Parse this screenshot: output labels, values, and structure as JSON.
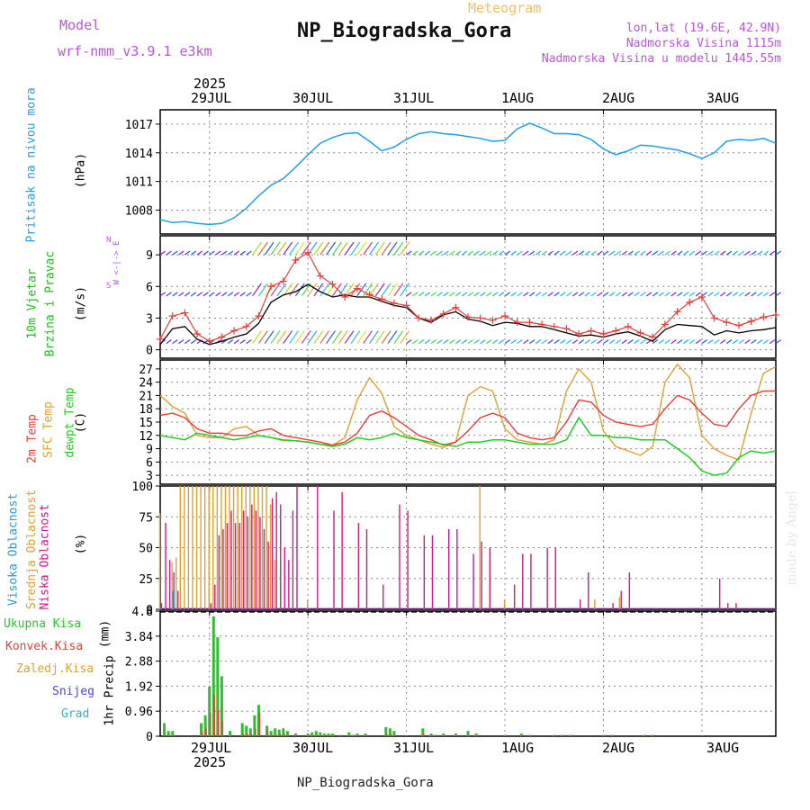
{
  "header": {
    "model_label": "Model",
    "model_name": "wrf-nmm_v3.9.1 e3km",
    "meteogram_label": "Meteogram",
    "station_title": "NP_Biogradska_Gora",
    "lonlat": "lon,lat (19.6E, 42.9N)",
    "elevation": "Nadmorska Visina 1115m",
    "model_elevation": "Nadmorska Visina u modelu 1445.55m",
    "watermark": "made by Angel",
    "footer_station": "NP_Biogradska_Gora"
  },
  "colors": {
    "pressure": "#1e9ee6",
    "wind_label": "#22bb22",
    "wind_speed": "#000000",
    "wind_gust": "#e83c3c",
    "temp_2m": "#e83c3c",
    "temp_sfc": "#e0a030",
    "dewpoint": "#22cc22",
    "cloud_high": "#2299dd",
    "cloud_mid": "#e0a030",
    "cloud_low": "#cc1a8a",
    "precip_total": "#33bb33",
    "precip_conv": "#e83c3c",
    "precip_snow": "#4444ee",
    "precip_grad": "#22bbbb",
    "axes_purple": "#bb55dd"
  },
  "time_axis": {
    "year_top": "2025",
    "year_bottom": "2025",
    "days": [
      "29JUL",
      "30JUL",
      "31JUL",
      "1AUG",
      "2AUG",
      "3AUG"
    ]
  },
  "chart_data": [
    {
      "type": "line",
      "id": "pressure",
      "ylabel_main": "Pritisak na nivou mora",
      "ylabel_unit": "(hPa)",
      "yticks": [
        "1008",
        "1011",
        "1014",
        "1017"
      ],
      "ylim": [
        1005.5,
        1018.5
      ],
      "x_hours": [
        0,
        3,
        6,
        9,
        12,
        15,
        18,
        21,
        24,
        27,
        30,
        33,
        36,
        39,
        42,
        45,
        48,
        51,
        54,
        57,
        60,
        63,
        66,
        69,
        72,
        75,
        78,
        81,
        84,
        87,
        90,
        93,
        96,
        99,
        102,
        105,
        108,
        111,
        114,
        117,
        120,
        123,
        126,
        129,
        132,
        135,
        138,
        141,
        144,
        147,
        150
      ],
      "values": [
        1007.0,
        1006.7,
        1006.8,
        1006.6,
        1006.5,
        1006.6,
        1007.2,
        1008.2,
        1009.5,
        1010.6,
        1011.3,
        1012.5,
        1013.8,
        1015.0,
        1015.6,
        1016.0,
        1016.1,
        1015.2,
        1014.2,
        1014.6,
        1015.4,
        1016.0,
        1016.2,
        1016.0,
        1015.9,
        1015.7,
        1015.5,
        1015.2,
        1015.3,
        1016.5,
        1017.1,
        1016.6,
        1016.0,
        1016.0,
        1015.9,
        1015.4,
        1014.4,
        1013.8,
        1014.2,
        1014.8,
        1014.7,
        1014.5,
        1014.3,
        1013.9,
        1013.4,
        1014.0,
        1015.2,
        1015.4,
        1015.3,
        1015.5,
        1015.0
      ]
    },
    {
      "type": "line",
      "id": "wind",
      "ylabel_main": "10m Vjetar",
      "ylabel_sub": "Brzina i Pravac",
      "ylabel_unit": "(m/s)",
      "compass_label": "W <-|-> E",
      "compass_n": "N",
      "compass_s": "S",
      "yticks": [
        "0",
        "3",
        "6",
        "9"
      ],
      "ylim": [
        -0.8,
        10.8
      ],
      "x_hours": [
        0,
        3,
        6,
        9,
        12,
        15,
        18,
        21,
        24,
        27,
        30,
        33,
        36,
        39,
        42,
        45,
        48,
        51,
        54,
        57,
        60,
        63,
        66,
        69,
        72,
        75,
        78,
        81,
        84,
        87,
        90,
        93,
        96,
        99,
        102,
        105,
        108,
        111,
        114,
        117,
        120,
        123,
        126,
        129,
        132,
        135,
        138,
        141,
        144,
        147,
        150
      ],
      "series": [
        {
          "name": "speed",
          "values": [
            0.5,
            2.0,
            2.2,
            1.0,
            0.5,
            0.8,
            1.2,
            1.5,
            2.5,
            4.5,
            5.2,
            5.5,
            6.2,
            5.5,
            5.0,
            5.2,
            5.0,
            5.0,
            4.6,
            4.2,
            4.0,
            3.0,
            2.6,
            3.3,
            3.6,
            2.9,
            2.7,
            2.3,
            2.6,
            2.5,
            2.2,
            2.2,
            1.9,
            1.6,
            1.3,
            1.4,
            1.2,
            1.5,
            1.7,
            1.3,
            0.8,
            1.9,
            2.4,
            2.3,
            2.2,
            1.4,
            1.8,
            1.6,
            1.8,
            1.9,
            2.1
          ]
        },
        {
          "name": "gust",
          "values": [
            1.0,
            3.2,
            3.5,
            1.5,
            0.8,
            1.2,
            1.8,
            2.2,
            3.2,
            6.0,
            6.5,
            8.5,
            9.2,
            7.0,
            6.2,
            5.0,
            5.8,
            5.2,
            4.8,
            4.4,
            4.2,
            3.0,
            2.8,
            3.4,
            4.0,
            3.1,
            3.0,
            2.8,
            3.2,
            2.6,
            2.6,
            2.4,
            2.2,
            2.0,
            1.5,
            1.8,
            1.5,
            1.8,
            2.2,
            1.6,
            1.2,
            2.4,
            3.6,
            4.5,
            5.0,
            3.0,
            2.6,
            2.3,
            2.7,
            3.1,
            3.3
          ]
        },
        {
          "name": "barbs",
          "rows": [
            0,
            1,
            2
          ]
        }
      ]
    },
    {
      "type": "line",
      "id": "temperature",
      "ylabel_main": "2m Temp",
      "ylabel_sub": "SFC Temp",
      "ylabel_sub2": "dewpt Temp",
      "ylabel_unit": "(C)",
      "yticks": [
        "3",
        "6",
        "9",
        "12",
        "15",
        "18",
        "21",
        "24",
        "27"
      ],
      "ylim": [
        1.0,
        29.0
      ],
      "x_hours": [
        0,
        3,
        6,
        9,
        12,
        15,
        18,
        21,
        24,
        27,
        30,
        33,
        36,
        39,
        42,
        45,
        48,
        51,
        54,
        57,
        60,
        63,
        66,
        69,
        72,
        75,
        78,
        81,
        84,
        87,
        90,
        93,
        96,
        99,
        102,
        105,
        108,
        111,
        114,
        117,
        120,
        123,
        126,
        129,
        132,
        135,
        138,
        141,
        144,
        147,
        150
      ],
      "series": [
        {
          "name": "2m Temp",
          "values": [
            16.5,
            17,
            16,
            13.5,
            12.5,
            12.5,
            12,
            12,
            13,
            13.5,
            12,
            11.5,
            11,
            10.5,
            9.8,
            10.5,
            12.5,
            16.5,
            17.5,
            16,
            14,
            12,
            11,
            9.8,
            10.5,
            13,
            16,
            17,
            16,
            12.5,
            11.5,
            11,
            11.5,
            15,
            20,
            19.5,
            16.5,
            15,
            14.5,
            14,
            14.5,
            18,
            21,
            20,
            17,
            14.5,
            14,
            18,
            21,
            22,
            22
          ]
        },
        {
          "name": "SFC Temp",
          "values": [
            21,
            18.5,
            17,
            12,
            11.5,
            11.5,
            13.5,
            14,
            12,
            11.5,
            10.8,
            10.8,
            10.5,
            10,
            9.8,
            11.5,
            20,
            25,
            21.5,
            14,
            12,
            11,
            10,
            9.3,
            10.5,
            21,
            23,
            22,
            13.5,
            11,
            10.5,
            10,
            11,
            22,
            27,
            24,
            13,
            9.5,
            8.5,
            7.5,
            9.5,
            24,
            28,
            25,
            12,
            9,
            7.5,
            6.5,
            17,
            26,
            27.5
          ]
        },
        {
          "name": "dewpt Temp",
          "values": [
            12,
            11.5,
            11,
            12.5,
            12,
            11.5,
            11,
            11.5,
            12,
            11.5,
            11,
            10.8,
            10.5,
            10,
            9.5,
            10,
            11.5,
            11,
            11.5,
            12.5,
            11.5,
            11,
            10.5,
            10,
            9.5,
            10.5,
            10.5,
            11,
            11,
            10.5,
            10,
            10,
            10,
            11,
            16,
            12,
            12,
            11.5,
            11.5,
            11,
            11,
            11,
            9,
            7,
            4,
            3,
            3.5,
            7,
            8.5,
            8,
            8.5
          ]
        }
      ]
    },
    {
      "type": "bar",
      "id": "cloud",
      "ylabel_main": "Visoka Oblacnost",
      "ylabel_sub": "Srednja Oblacnost",
      "ylabel_sub2": "Niska Oblacnost",
      "ylabel_unit": "(%)",
      "yticks": [
        "0",
        "25",
        "50",
        "75",
        "100"
      ],
      "ylim": [
        0,
        100
      ],
      "x_hours": [
        0,
        1,
        2,
        3,
        4,
        5,
        6,
        7,
        8,
        9,
        10,
        11,
        12,
        13,
        14,
        15,
        16,
        17,
        18,
        19,
        20,
        21,
        22,
        23,
        24,
        25,
        26,
        27,
        28,
        29,
        30,
        31,
        32,
        33,
        34,
        36,
        38,
        40,
        42,
        44,
        46,
        48,
        50,
        52,
        54,
        56,
        58,
        60,
        62,
        64,
        66,
        68,
        70,
        72,
        74,
        76,
        78,
        80,
        82,
        84,
        86,
        88,
        90,
        92,
        94,
        96,
        98,
        100,
        102,
        104,
        106,
        108,
        110,
        112,
        114,
        116,
        118,
        120,
        122,
        124,
        126,
        128,
        130,
        132,
        134,
        136,
        138,
        140,
        142,
        144,
        146,
        148,
        150
      ],
      "series": [
        {
          "name": "Niska",
          "values": [
            5,
            70,
            40,
            30,
            15,
            0,
            0,
            0,
            0,
            0,
            0,
            0,
            5,
            20,
            60,
            65,
            70,
            80,
            70,
            70,
            80,
            75,
            85,
            80,
            75,
            65,
            55,
            90,
            95,
            85,
            50,
            40,
            80,
            100,
            0,
            0,
            100,
            0,
            80,
            95,
            0,
            70,
            65,
            0,
            20,
            0,
            85,
            80,
            0,
            60,
            60,
            0,
            65,
            65,
            0,
            45,
            55,
            50,
            0,
            0,
            20,
            45,
            45,
            0,
            50,
            50,
            0,
            0,
            8,
            30,
            0,
            0,
            5,
            15,
            30,
            0,
            0,
            0,
            0,
            0,
            0,
            0,
            0,
            0,
            0,
            25,
            5,
            5,
            0,
            0,
            0,
            0,
            0
          ]
        },
        {
          "name": "Srednja",
          "values": [
            78,
            0,
            0,
            38,
            42,
            100,
            100,
            100,
            100,
            100,
            100,
            100,
            100,
            100,
            100,
            100,
            100,
            100,
            100,
            100,
            100,
            100,
            100,
            100,
            100,
            100,
            100,
            85,
            40,
            0,
            0,
            0,
            0,
            0,
            0,
            8,
            0,
            0,
            0,
            0,
            0,
            0,
            0,
            0,
            0,
            0,
            0,
            0,
            0,
            0,
            0,
            0,
            0,
            0,
            0,
            0,
            100,
            0,
            0,
            8,
            0,
            0,
            0,
            0,
            0,
            0,
            0,
            0,
            0,
            0,
            8,
            0,
            0,
            10,
            0,
            0,
            0,
            0,
            0,
            0,
            0,
            0,
            0,
            0,
            0,
            0,
            0,
            0,
            0,
            0,
            0,
            0,
            0
          ]
        },
        {
          "name": "Visoka",
          "values": [
            0,
            0,
            0,
            15,
            0,
            0,
            0,
            0,
            0,
            0,
            0,
            0,
            0,
            0,
            0,
            0,
            0,
            0,
            0,
            0,
            0,
            0,
            0,
            0,
            0,
            0,
            0,
            0,
            0,
            0,
            0,
            0,
            0,
            0,
            0,
            0,
            0,
            0,
            0,
            0,
            0,
            0,
            0,
            0,
            0,
            0,
            0,
            0,
            0,
            0,
            0,
            0,
            0,
            0,
            0,
            0,
            0,
            0,
            0,
            0,
            0,
            0,
            0,
            0,
            0,
            0,
            0,
            0,
            0,
            0,
            0,
            0,
            0,
            0,
            0,
            0,
            0,
            0,
            0,
            0,
            0,
            0,
            0,
            0,
            0,
            0,
            0,
            0,
            0,
            0,
            0,
            0,
            0
          ]
        }
      ]
    },
    {
      "type": "bar",
      "id": "precip",
      "ylabel_main": "1hr Precip",
      "ylabel_unit": "(mm)",
      "legend": [
        "Ukupna Kisa",
        "Konvek.Kisa",
        "Zaledj.Kisa",
        "Snijeg",
        "Grad"
      ],
      "yticks": [
        "0",
        "0.96",
        "1.92",
        "2.88",
        "3.84",
        "4.8"
      ],
      "ylim": [
        0,
        4.8
      ],
      "x_hours": [
        1,
        2,
        3,
        10,
        11,
        12,
        13,
        14,
        15,
        17,
        20,
        21,
        22,
        23,
        24,
        26,
        27,
        28,
        29,
        30,
        31,
        33,
        36,
        37,
        38,
        39,
        40,
        41,
        42,
        44,
        46,
        47,
        48,
        50,
        55,
        56,
        57,
        64,
        66,
        67,
        69,
        72,
        75,
        77,
        84,
        88,
        90,
        96,
        98,
        100,
        108,
        110,
        118,
        120
      ],
      "series": [
        {
          "name": "Ukupna Kisa",
          "values": [
            0.5,
            0.2,
            0.2,
            0.5,
            0.8,
            1.9,
            4.6,
            3.8,
            2.3,
            0.2,
            0.5,
            0.4,
            0.3,
            0.8,
            1.2,
            0.4,
            0.2,
            0.3,
            0.25,
            0.3,
            0.2,
            0.1,
            0.1,
            0.15,
            0.2,
            0.15,
            0.1,
            0.1,
            0.1,
            0.05,
            0.15,
            0.05,
            0.1,
            0.1,
            0.35,
            0.3,
            0.2,
            0.3,
            0.1,
            0.05,
            0.1,
            0.1,
            0.2,
            0.1,
            0.05,
            0.1,
            0.05,
            0.05,
            0.05,
            0.05,
            0.05,
            0.05,
            0.05,
            0.05
          ]
        },
        {
          "name": "Konvek.Kisa",
          "values": [
            0.05,
            0.05,
            0.05,
            0.2,
            0.3,
            0.9,
            1.6,
            1.0,
            0.6,
            0.05,
            0.1,
            0.1,
            0.1,
            0.3,
            0.9,
            0.2,
            0.05,
            0.05,
            0.1,
            0.1,
            0.05,
            0.05,
            0.05,
            0.05,
            0.05,
            0.05,
            0.05,
            0.05,
            0.05,
            0.05,
            0.05,
            0.05,
            0.05,
            0.05,
            0.1,
            0.1,
            0.05,
            0.1,
            0.05,
            0.05,
            0.05,
            0.05,
            0.05,
            0.05,
            0.05,
            0.05,
            0.05,
            0.05,
            0.05,
            0.05,
            0.05,
            0.05,
            0.05,
            0.05
          ]
        }
      ]
    }
  ]
}
